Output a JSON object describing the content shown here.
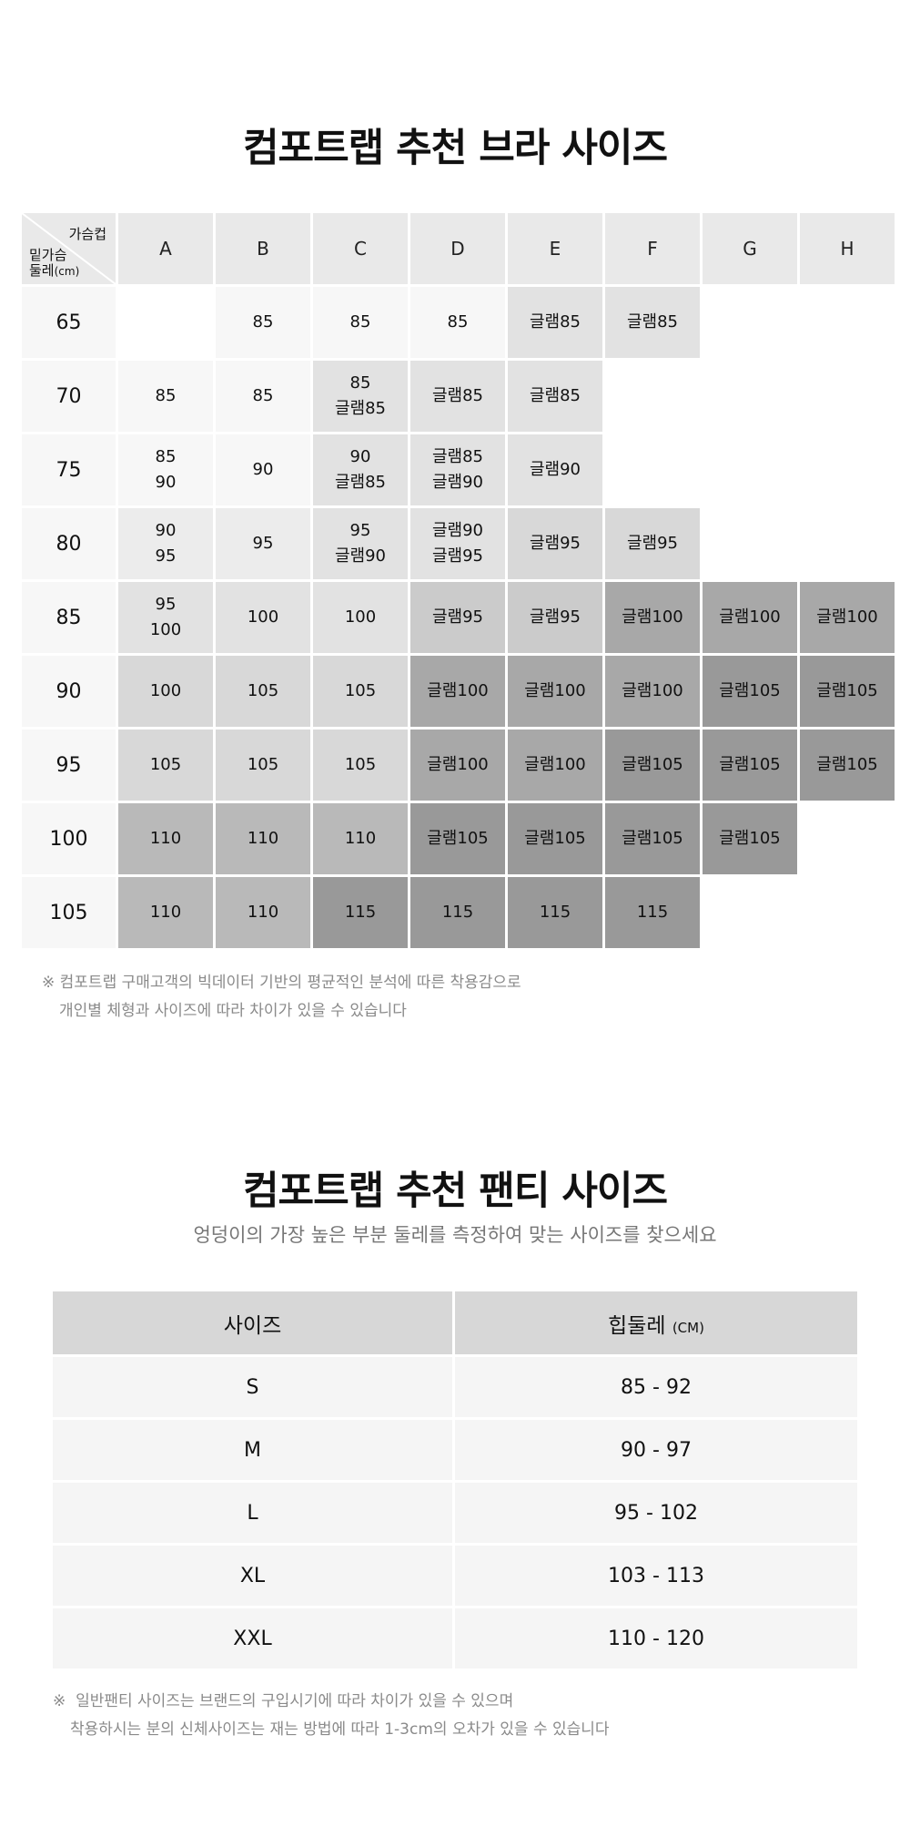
{
  "bra_section": {
    "title": "컴포트랩 추천 브라 사이즈",
    "corner_cup": "가슴컵",
    "corner_under_1": "밑가슴",
    "corner_under_2": "둘레",
    "corner_unit": "(cm)",
    "cups": [
      "A",
      "B",
      "C",
      "D",
      "E",
      "F",
      "G",
      "H"
    ],
    "rows": [
      {
        "band": "65",
        "cells": [
          {
            "text": "",
            "shade": 0
          },
          {
            "text": "85",
            "shade": 1
          },
          {
            "text": "85",
            "shade": 1
          },
          {
            "text": "85",
            "shade": 1
          },
          {
            "text": "글램85",
            "shade": 3
          },
          {
            "text": "글램85",
            "shade": 3
          },
          {
            "text": "",
            "shade": 0
          },
          {
            "text": "",
            "shade": 0
          }
        ]
      },
      {
        "band": "70",
        "cells": [
          {
            "text": "85",
            "shade": 1
          },
          {
            "text": "85",
            "shade": 1
          },
          {
            "text": "85\n글램85",
            "shade": 3
          },
          {
            "text": "글램85",
            "shade": 3
          },
          {
            "text": "글램85",
            "shade": 3
          },
          {
            "text": "",
            "shade": 0
          },
          {
            "text": "",
            "shade": 0
          },
          {
            "text": "",
            "shade": 0
          }
        ]
      },
      {
        "band": "75",
        "cells": [
          {
            "text": "85\n90",
            "shade": 1
          },
          {
            "text": "90",
            "shade": 1
          },
          {
            "text": "90\n글램85",
            "shade": 3
          },
          {
            "text": "글램85\n글램90",
            "shade": 3
          },
          {
            "text": "글램90",
            "shade": 3
          },
          {
            "text": "",
            "shade": 0
          },
          {
            "text": "",
            "shade": 0
          },
          {
            "text": "",
            "shade": 0
          }
        ]
      },
      {
        "band": "80",
        "cells": [
          {
            "text": "90\n95",
            "shade": 2
          },
          {
            "text": "95",
            "shade": 2
          },
          {
            "text": "95\n글램90",
            "shade": 3
          },
          {
            "text": "글램90\n글램95",
            "shade": 3
          },
          {
            "text": "글램95",
            "shade": 4
          },
          {
            "text": "글램95",
            "shade": 4
          },
          {
            "text": "",
            "shade": 0
          },
          {
            "text": "",
            "shade": 0
          }
        ]
      },
      {
        "band": "85",
        "cells": [
          {
            "text": "95\n100",
            "shade": 3
          },
          {
            "text": "100",
            "shade": 3
          },
          {
            "text": "100",
            "shade": 3
          },
          {
            "text": "글램95",
            "shade": 5
          },
          {
            "text": "글램95",
            "shade": 5
          },
          {
            "text": "글램100",
            "shade": 7
          },
          {
            "text": "글램100",
            "shade": 7
          },
          {
            "text": "글램100",
            "shade": 7
          }
        ]
      },
      {
        "band": "90",
        "cells": [
          {
            "text": "100",
            "shade": 4
          },
          {
            "text": "105",
            "shade": 4
          },
          {
            "text": "105",
            "shade": 4
          },
          {
            "text": "글램100",
            "shade": 7
          },
          {
            "text": "글램100",
            "shade": 7
          },
          {
            "text": "글램100",
            "shade": 7
          },
          {
            "text": "글램105",
            "shade": 8
          },
          {
            "text": "글램105",
            "shade": 8
          }
        ]
      },
      {
        "band": "95",
        "cells": [
          {
            "text": "105",
            "shade": 4
          },
          {
            "text": "105",
            "shade": 4
          },
          {
            "text": "105",
            "shade": 4
          },
          {
            "text": "글램100",
            "shade": 7
          },
          {
            "text": "글램100",
            "shade": 7
          },
          {
            "text": "글램105",
            "shade": 8
          },
          {
            "text": "글램105",
            "shade": 8
          },
          {
            "text": "글램105",
            "shade": 8
          }
        ]
      },
      {
        "band": "100",
        "cells": [
          {
            "text": "110",
            "shade": 6
          },
          {
            "text": "110",
            "shade": 6
          },
          {
            "text": "110",
            "shade": 6
          },
          {
            "text": "글램105",
            "shade": 8
          },
          {
            "text": "글램105",
            "shade": 8
          },
          {
            "text": "글램105",
            "shade": 8
          },
          {
            "text": "글램105",
            "shade": 8
          },
          {
            "text": "",
            "shade": 0
          }
        ]
      },
      {
        "band": "105",
        "cells": [
          {
            "text": "110",
            "shade": 6
          },
          {
            "text": "110",
            "shade": 6
          },
          {
            "text": "115",
            "shade": 8
          },
          {
            "text": "115",
            "shade": 8
          },
          {
            "text": "115",
            "shade": 8
          },
          {
            "text": "115",
            "shade": 8
          },
          {
            "text": "",
            "shade": 0
          },
          {
            "text": "",
            "shade": 0
          }
        ]
      }
    ],
    "note_mark": "※",
    "note_line1": "컴포트랩 구매고객의 빅데이터 기반의 평균적인 분석에 따른 착용감으로",
    "note_line2": "개인별 체형과 사이즈에 따라 차이가 있을 수 있습니다"
  },
  "panty_section": {
    "title": "컴포트랩 추천 팬티 사이즈",
    "subtitle": "엉덩이의 가장 높은 부분 둘레를 측정하여 맞는 사이즈를 찾으세요",
    "header_size": "사이즈",
    "header_hip": "힙둘레",
    "header_hip_unit": "(CM)",
    "rows": [
      {
        "size": "S",
        "hip": "85 - 92"
      },
      {
        "size": "M",
        "hip": "90 - 97"
      },
      {
        "size": "L",
        "hip": "95 - 102"
      },
      {
        "size": "XL",
        "hip": "103 - 113"
      },
      {
        "size": "XXL",
        "hip": "110 - 120"
      }
    ],
    "note_mark": "※",
    "note_line1": "일반팬티 사이즈는 브랜드의 구입시기에 따라 차이가 있을 수 있으며",
    "note_line2": "착용하시는 분의 신체사이즈는 재는 방법에 따라 1-3cm의 오차가 있을 수 있습니다"
  }
}
